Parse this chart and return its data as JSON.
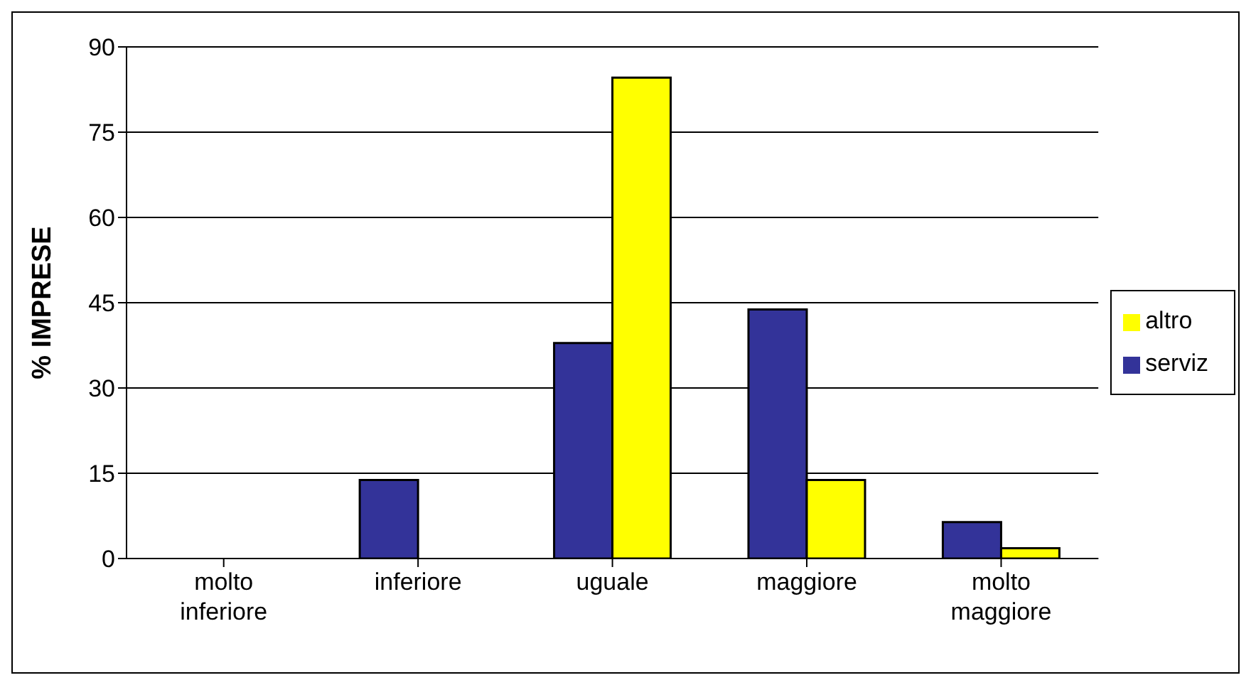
{
  "chart_data": {
    "type": "bar",
    "ylabel": "% IMPRESE",
    "categories": [
      "molto inferiore",
      "inferiore",
      "uguale",
      "maggiore",
      "molto maggiore"
    ],
    "series": [
      {
        "name": "serviz",
        "color": "#333399",
        "values": [
          0,
          13.8,
          37.9,
          43.8,
          6.4
        ]
      },
      {
        "name": "altro",
        "color": "#ffff00",
        "values": [
          0,
          0,
          84.6,
          13.8,
          1.8
        ]
      }
    ],
    "ylim": [
      0,
      90
    ],
    "yticks": [
      0,
      15,
      30,
      45,
      60,
      75,
      90
    ],
    "grid": "y",
    "legend": "right"
  }
}
